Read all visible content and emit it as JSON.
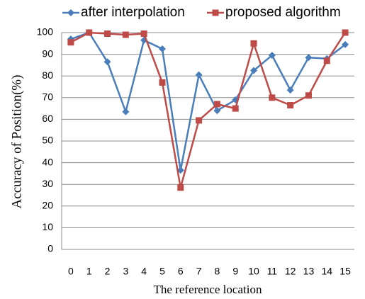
{
  "chart_data": {
    "type": "line",
    "xlabel": "The reference location",
    "ylabel": "Accuracy of Position(%)",
    "categories": [
      "0",
      "1",
      "2",
      "3",
      "4",
      "5",
      "6",
      "7",
      "8",
      "9",
      "10",
      "11",
      "12",
      "13",
      "14",
      "15"
    ],
    "series": [
      {
        "name": "after interpolation",
        "color": "#4a7ebb",
        "marker": "diamond",
        "values": [
          97,
          100,
          86.5,
          63.5,
          96.5,
          92.5,
          36.5,
          80.5,
          64,
          69,
          82.5,
          89.5,
          73.5,
          88.5,
          88,
          94.5
        ]
      },
      {
        "name": "proposed algorithm",
        "color": "#be4b48",
        "marker": "square",
        "values": [
          95.5,
          100,
          99.5,
          99,
          99.5,
          77,
          28.5,
          59.5,
          67,
          65,
          95,
          70,
          66.5,
          71,
          87,
          100
        ]
      }
    ],
    "ylim": [
      0,
      100
    ],
    "yticks": [
      0,
      10,
      20,
      30,
      40,
      50,
      60,
      70,
      80,
      90,
      100
    ],
    "grid": true
  }
}
